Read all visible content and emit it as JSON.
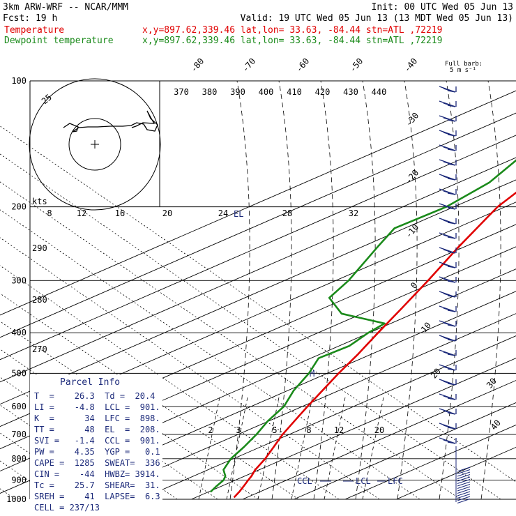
{
  "header": {
    "model": "3km ARW-WRF -- NCAR/MMM",
    "init": "Init: 00 UTC Wed 05 Jun 13",
    "fcst": "Fcst:   19 h",
    "valid": "Valid: 19 UTC Wed 05 Jun 13 (13 MDT Wed 05 Jun 13)"
  },
  "legend": {
    "temperature": {
      "label": "Temperature",
      "info": "x,y=897.62,339.46   lat,lon= 33.63, -84.44  stn=ATL ,72219",
      "color": "#e00000"
    },
    "dewpoint": {
      "label": "Dewpoint temperature",
      "info": "x,y=897.62,339.46   lat,lon= 33.63, -84.44  stn=ATL ,72219",
      "color": "#1a8a1a"
    }
  },
  "barb_title": [
    "Full barb:",
    "5 m s⁻¹"
  ],
  "parcel": {
    "title": "Parcel Info",
    "rows": [
      "T  =    26.3  Td =  20.4",
      "LI =    -4.8  LCL =  901.",
      "K  =      34  LFC =  898.",
      "TT =      48  EL  =  208.",
      "SVI =   -1.4  CCL =  901.",
      "PW =    4.35  YGP =   0.1",
      "CAPE =  1285  SWEAT=  336",
      "CIN =    -44  HWBZ= 3914.",
      "Tc =    25.7  SHEAR=  31.",
      "SREH =    41  LAPSE=  6.3",
      "CELL = 237/13"
    ]
  },
  "annotations": {
    "el": "EL",
    "ccl": "CCL",
    "lcl": "LCL",
    "lfc": "LFC",
    "m": "M",
    "hodo_kts": "kts",
    "hodo_ring": "25"
  },
  "chart_data": {
    "type": "skew-T log-p sounding",
    "pressure_levels_hPa": [
      100,
      200,
      300,
      400,
      500,
      600,
      700,
      800,
      900,
      1000
    ],
    "isotherm_labels_C": [
      -80,
      -70,
      -60,
      -50,
      -40,
      -30,
      -20,
      -10,
      0,
      10,
      20,
      30,
      40
    ],
    "theta_labels_K": [
      370,
      380,
      390,
      400,
      410,
      420,
      430,
      440
    ],
    "mixing_ratio_labels": [
      2,
      3,
      5,
      8,
      12,
      20
    ],
    "hodograph_speed_labels_kts": [
      8,
      12,
      16,
      20,
      24,
      28,
      32
    ],
    "dry_adiabat_labels": [
      290,
      280,
      270
    ],
    "temperature_profile": [
      {
        "p": 990,
        "t": 27.5
      },
      {
        "p": 960,
        "t": 26.0
      },
      {
        "p": 930,
        "t": 24.3
      },
      {
        "p": 900,
        "t": 22.5
      },
      {
        "p": 880,
        "t": 21.3
      },
      {
        "p": 850,
        "t": 19.2
      },
      {
        "p": 800,
        "t": 16.2
      },
      {
        "p": 750,
        "t": 12.6
      },
      {
        "p": 700,
        "t": 8.7
      },
      {
        "p": 650,
        "t": 5.0
      },
      {
        "p": 600,
        "t": 1.0
      },
      {
        "p": 550,
        "t": -3.2
      },
      {
        "p": 500,
        "t": -7.8
      },
      {
        "p": 450,
        "t": -12.6
      },
      {
        "p": 400,
        "t": -18.3
      },
      {
        "p": 350,
        "t": -24.6
      },
      {
        "p": 300,
        "t": -32.0
      },
      {
        "p": 250,
        "t": -41.0
      },
      {
        "p": 200,
        "t": -51.5
      },
      {
        "p": 175,
        "t": -56.2
      },
      {
        "p": 150,
        "t": -60.8
      },
      {
        "p": 125,
        "t": -64.6
      },
      {
        "p": 110,
        "t": -65.8
      },
      {
        "p": 100,
        "t": -66.5
      }
    ],
    "dewpoint_profile": [
      {
        "p": 960,
        "t": 20.4
      },
      {
        "p": 930,
        "t": 19.0
      },
      {
        "p": 900,
        "t": 17.7
      },
      {
        "p": 880,
        "t": 16.2
      },
      {
        "p": 850,
        "t": 13.0
      },
      {
        "p": 800,
        "t": 9.5
      },
      {
        "p": 750,
        "t": 6.8
      },
      {
        "p": 700,
        "t": 3.6
      },
      {
        "p": 650,
        "t": -0.2
      },
      {
        "p": 600,
        "t": -3.6
      },
      {
        "p": 550,
        "t": -8.8
      },
      {
        "p": 500,
        "t": -13.6
      },
      {
        "p": 460,
        "t": -18.5
      },
      {
        "p": 430,
        "t": -18.0
      },
      {
        "p": 400,
        "t": -20.2
      },
      {
        "p": 380,
        "t": -21.2
      },
      {
        "p": 360,
        "t": -34.0
      },
      {
        "p": 330,
        "t": -43.5
      },
      {
        "p": 300,
        "t": -47.5
      },
      {
        "p": 250,
        "t": -56.8
      },
      {
        "p": 225,
        "t": -62.0
      },
      {
        "p": 200,
        "t": -61.5
      },
      {
        "p": 175,
        "t": -64.0
      },
      {
        "p": 150,
        "t": -70.0
      },
      {
        "p": 125,
        "t": -71.5
      },
      {
        "p": 110,
        "t": -66.0
      },
      {
        "p": 100,
        "t": -63.5
      }
    ]
  }
}
